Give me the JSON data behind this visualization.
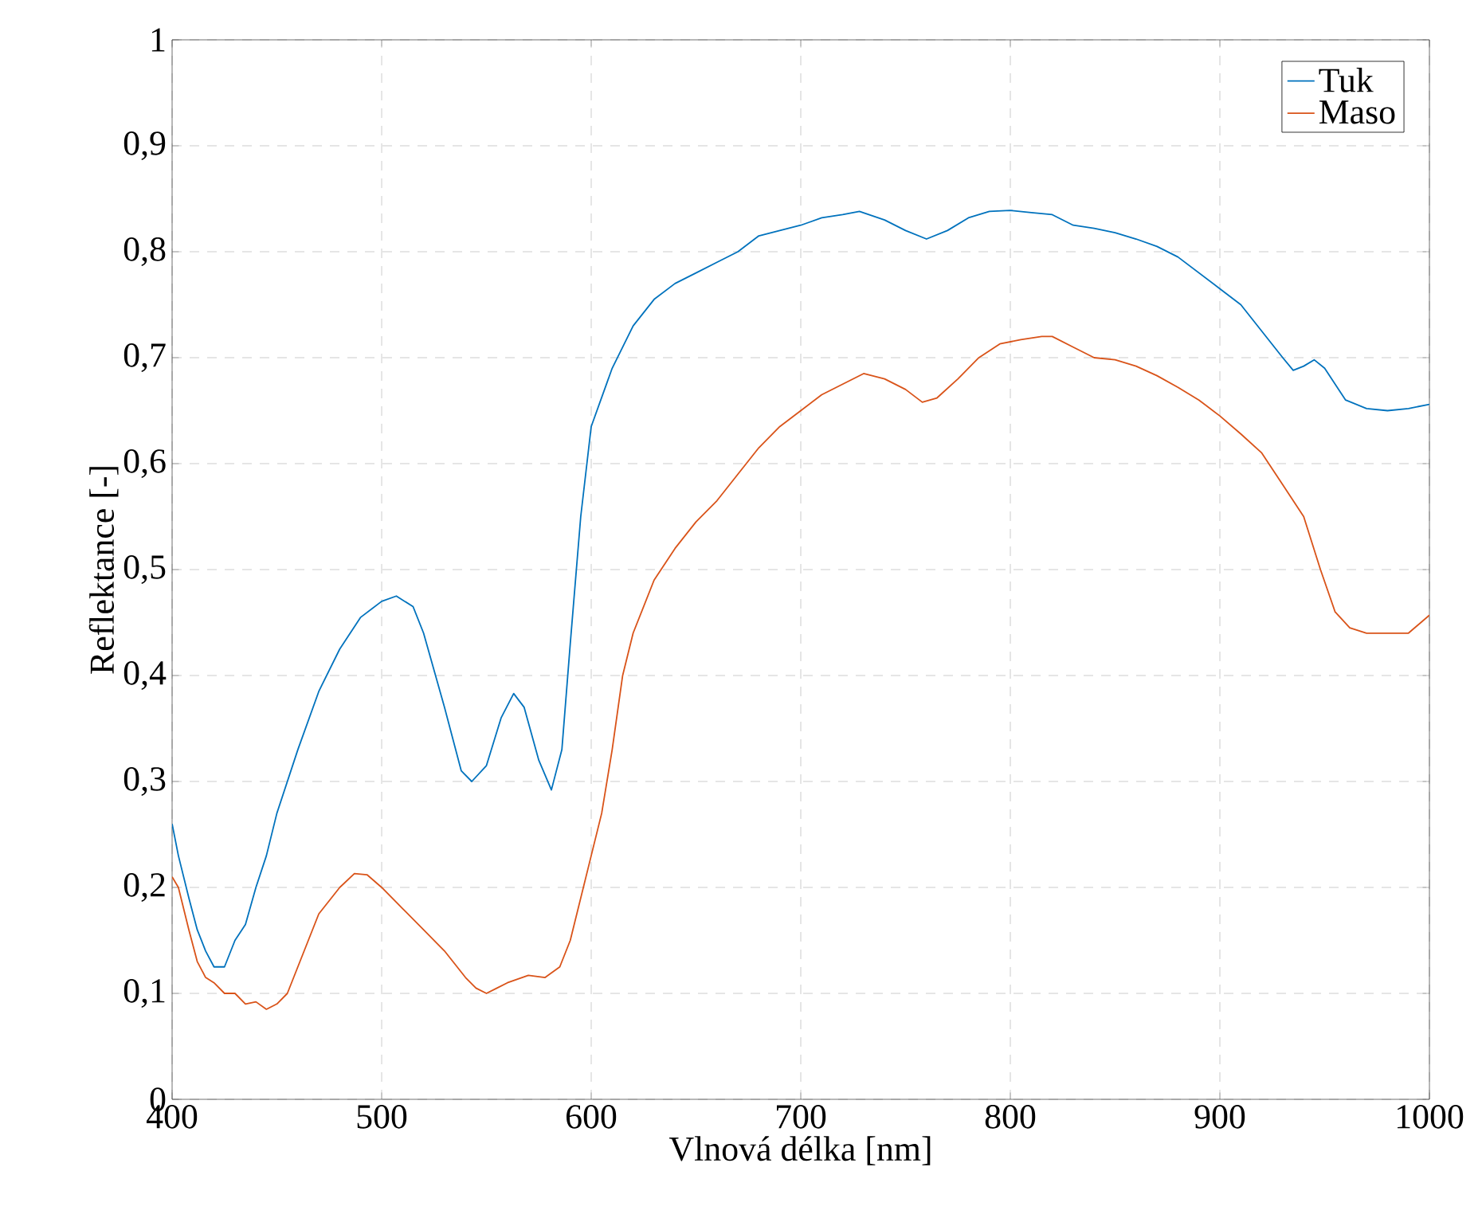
{
  "chart_data": {
    "type": "line",
    "xlabel": "Vlnová délka [nm]",
    "ylabel": "Reflektance [-]",
    "xlim": [
      400,
      1000
    ],
    "ylim": [
      0,
      1
    ],
    "xticks": [
      400,
      500,
      600,
      700,
      800,
      900,
      1000
    ],
    "yticks": [
      0,
      {
        "value": 0.1,
        "label": "0,1"
      },
      {
        "value": 0.2,
        "label": "0,2"
      },
      {
        "value": 0.3,
        "label": "0,3"
      },
      {
        "value": 0.4,
        "label": "0,4"
      },
      {
        "value": 0.5,
        "label": "0,5"
      },
      {
        "value": 0.6,
        "label": "0,6"
      },
      {
        "value": 0.7,
        "label": "0,7"
      },
      {
        "value": 0.8,
        "label": "0,8"
      },
      {
        "value": 0.9,
        "label": "0,9"
      },
      1
    ],
    "grid": true,
    "legend": "top right",
    "line_style": "solid",
    "marker": "none",
    "series": [
      {
        "name": "Tuk",
        "color": "#0072bd",
        "x": [
          400,
          403,
          408,
          412,
          416,
          420,
          425,
          430,
          435,
          440,
          445,
          450,
          460,
          470,
          480,
          490,
          500,
          507,
          515,
          520,
          530,
          538,
          543,
          550,
          557,
          563,
          568,
          575,
          581,
          586,
          590,
          595,
          600,
          610,
          620,
          630,
          640,
          650,
          660,
          670,
          680,
          690,
          700,
          710,
          720,
          728,
          740,
          750,
          760,
          770,
          780,
          790,
          800,
          810,
          820,
          830,
          840,
          850,
          860,
          870,
          880,
          890,
          900,
          910,
          920,
          930,
          935,
          940,
          945,
          950,
          960,
          970,
          980,
          990,
          1000
        ],
        "values": [
          0.26,
          0.23,
          0.19,
          0.16,
          0.14,
          0.125,
          0.125,
          0.15,
          0.165,
          0.2,
          0.23,
          0.27,
          0.33,
          0.385,
          0.425,
          0.455,
          0.47,
          0.475,
          0.465,
          0.44,
          0.37,
          0.31,
          0.3,
          0.315,
          0.36,
          0.383,
          0.37,
          0.32,
          0.292,
          0.33,
          0.43,
          0.55,
          0.635,
          0.69,
          0.73,
          0.755,
          0.77,
          0.78,
          0.79,
          0.8,
          0.815,
          0.82,
          0.825,
          0.832,
          0.835,
          0.838,
          0.83,
          0.82,
          0.812,
          0.82,
          0.832,
          0.838,
          0.839,
          0.837,
          0.835,
          0.825,
          0.822,
          0.818,
          0.812,
          0.805,
          0.795,
          0.78,
          0.765,
          0.75,
          0.725,
          0.7,
          0.688,
          0.692,
          0.698,
          0.69,
          0.66,
          0.652,
          0.65,
          0.652,
          0.656
        ]
      },
      {
        "name": "Maso",
        "color": "#d95319",
        "x": [
          400,
          403,
          408,
          412,
          416,
          420,
          425,
          430,
          435,
          440,
          445,
          450,
          455,
          460,
          465,
          470,
          480,
          487,
          493,
          500,
          510,
          520,
          530,
          540,
          545,
          550,
          555,
          560,
          570,
          578,
          585,
          590,
          600,
          605,
          610,
          615,
          620,
          630,
          640,
          650,
          660,
          670,
          680,
          690,
          700,
          710,
          720,
          730,
          740,
          750,
          758,
          765,
          775,
          785,
          795,
          805,
          815,
          820,
          830,
          840,
          850,
          860,
          870,
          880,
          890,
          900,
          910,
          920,
          930,
          940,
          948,
          955,
          962,
          970,
          980,
          990,
          1000
        ],
        "values": [
          0.21,
          0.2,
          0.16,
          0.13,
          0.115,
          0.11,
          0.1,
          0.1,
          0.09,
          0.092,
          0.085,
          0.09,
          0.1,
          0.125,
          0.15,
          0.175,
          0.2,
          0.213,
          0.212,
          0.2,
          0.18,
          0.16,
          0.14,
          0.115,
          0.105,
          0.1,
          0.105,
          0.11,
          0.117,
          0.115,
          0.125,
          0.15,
          0.23,
          0.27,
          0.33,
          0.4,
          0.44,
          0.49,
          0.52,
          0.545,
          0.565,
          0.59,
          0.615,
          0.635,
          0.65,
          0.665,
          0.675,
          0.685,
          0.68,
          0.67,
          0.658,
          0.662,
          0.68,
          0.7,
          0.713,
          0.717,
          0.72,
          0.72,
          0.71,
          0.7,
          0.698,
          0.692,
          0.683,
          0.672,
          0.66,
          0.645,
          0.628,
          0.61,
          0.58,
          0.55,
          0.5,
          0.46,
          0.445,
          0.44,
          0.44,
          0.44,
          0.457
        ]
      }
    ]
  }
}
